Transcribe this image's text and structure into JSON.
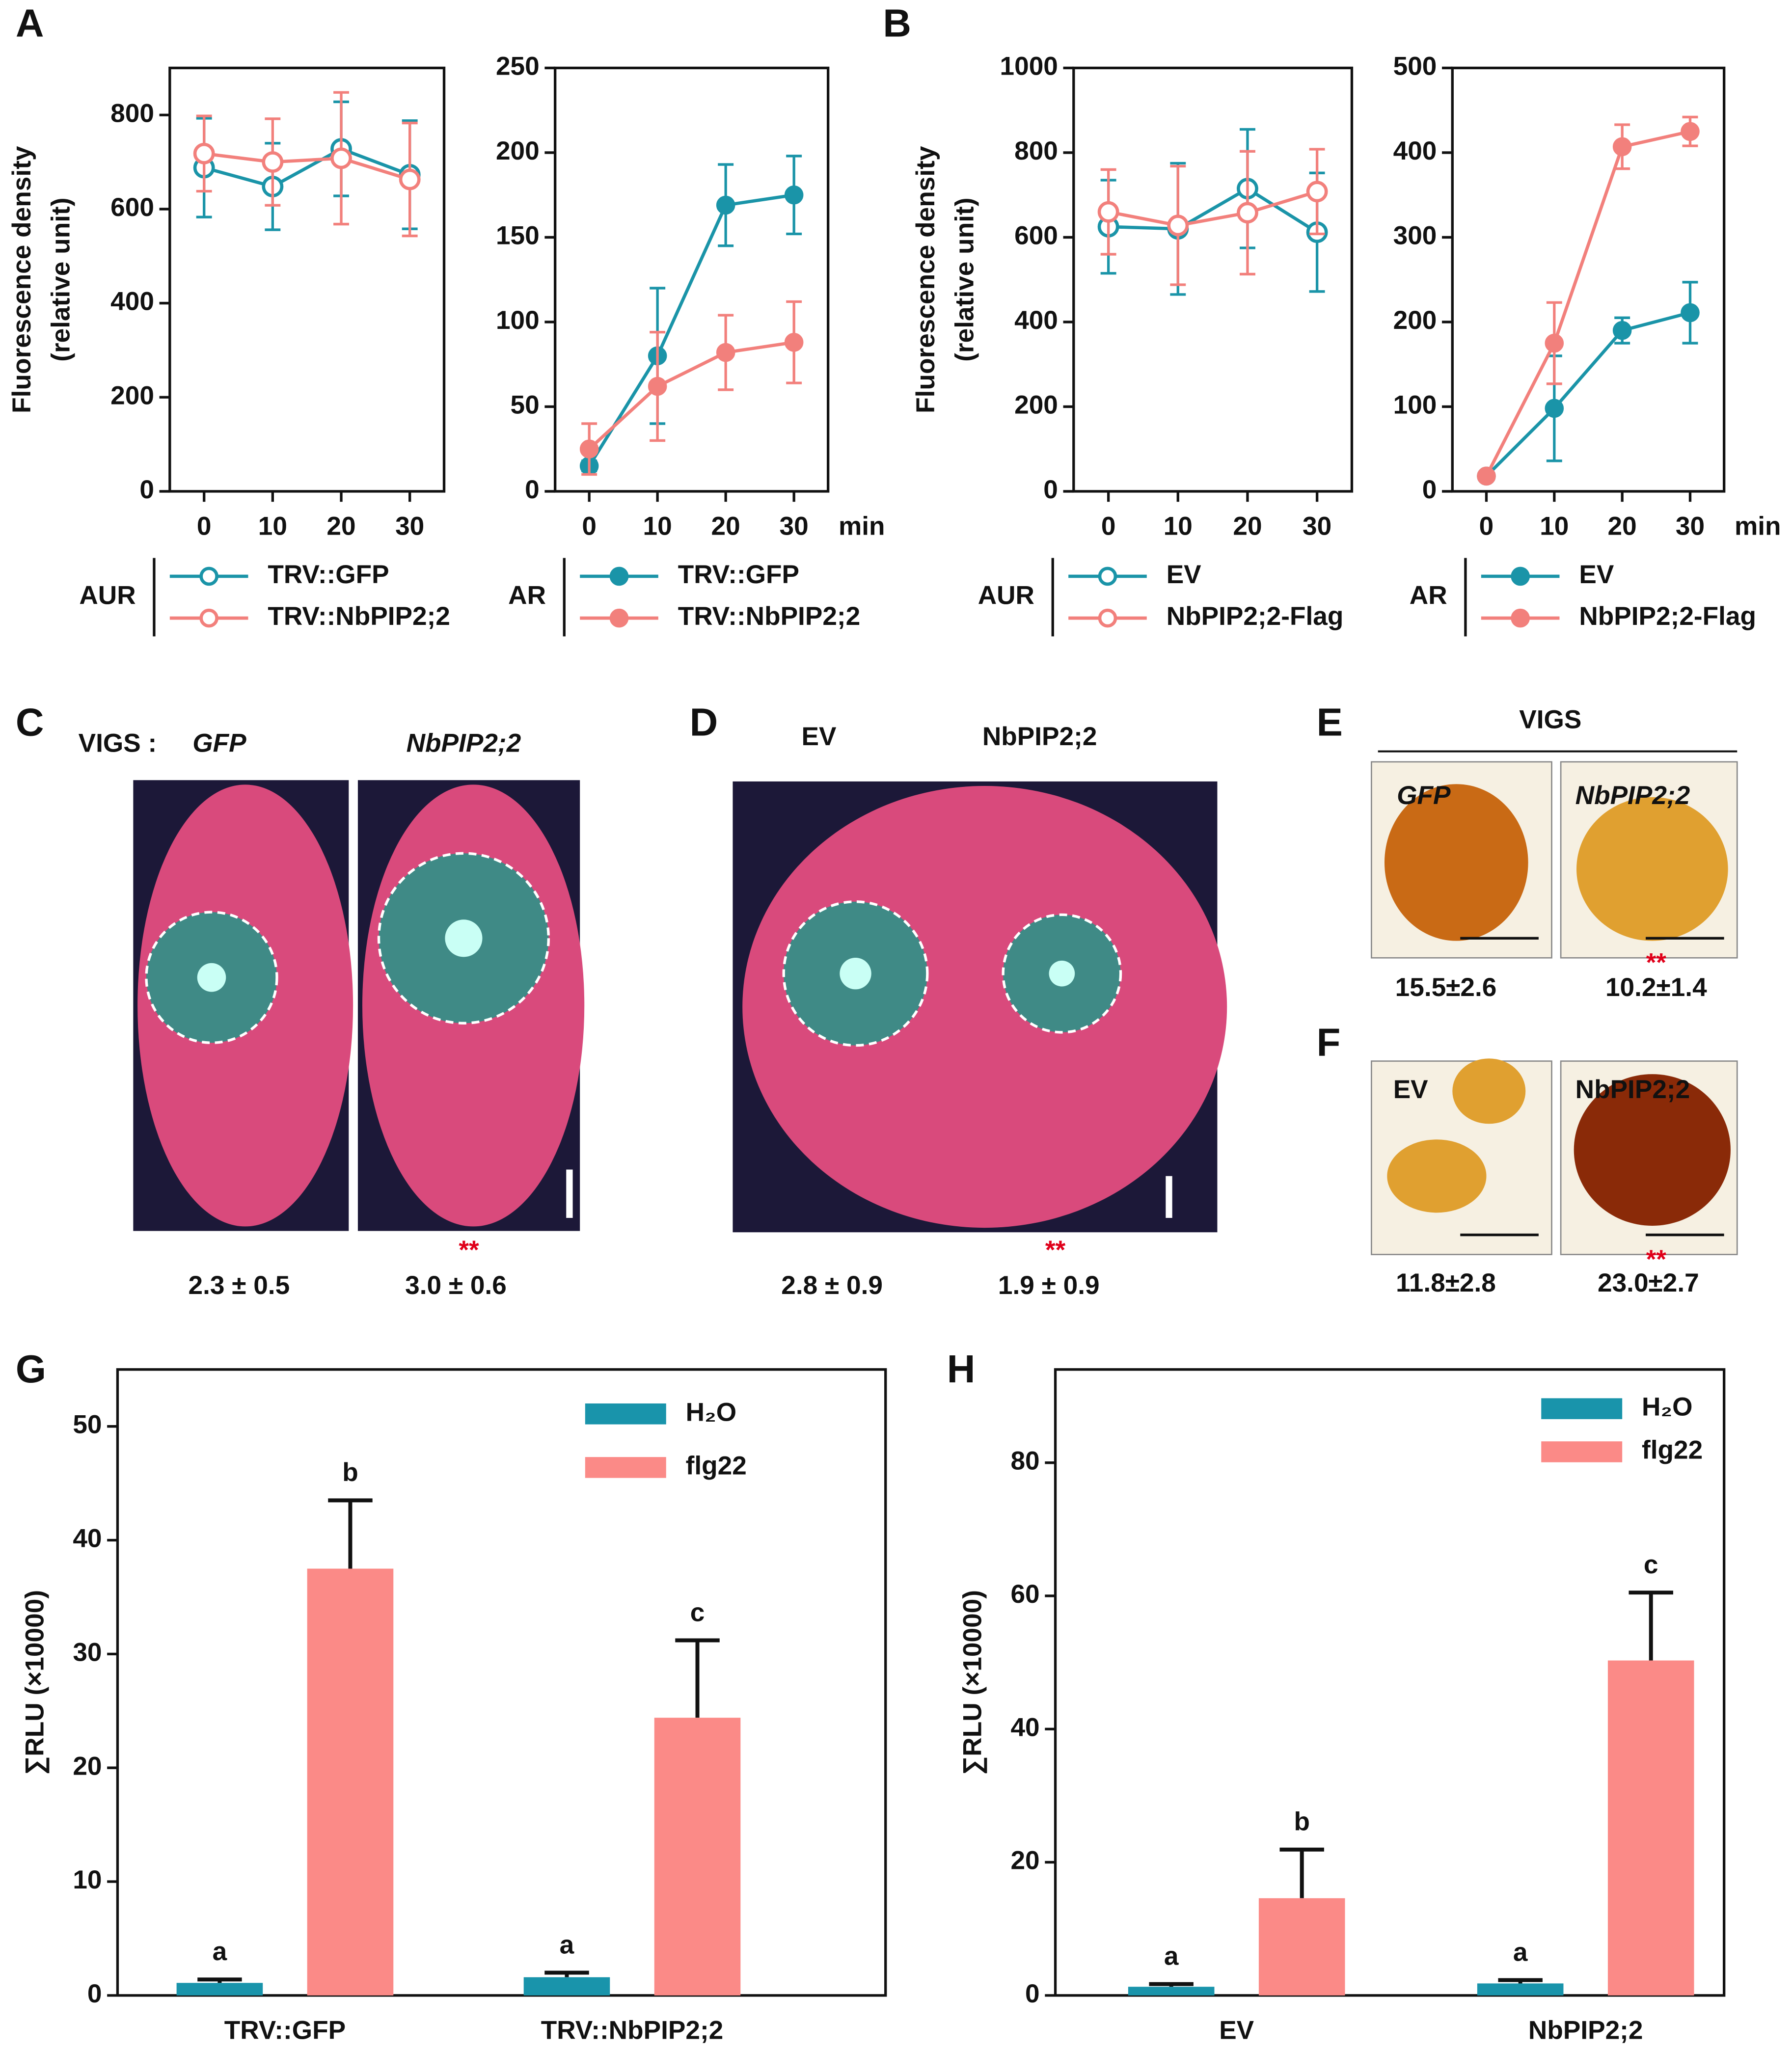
{
  "chart_data": [
    {
      "type": "line",
      "panel": "A",
      "ylabel": [
        "Fluorescence density",
        "(relative unit)"
      ],
      "x": [
        0,
        10,
        20,
        30
      ],
      "xlim": [
        -5,
        35
      ],
      "xticks": [
        0,
        10,
        20,
        30
      ],
      "ylim": [
        0,
        900
      ],
      "yticks": [
        0,
        200,
        400,
        600,
        800
      ],
      "legend_title": "AUR",
      "series": [
        {
          "name": "TRV::GFP",
          "color": "#1a94a8",
          "filled": false,
          "values": [
            688,
            648,
            728,
            673
          ],
          "errors": [
            105,
            92,
            100,
            115
          ]
        },
        {
          "name": "TRV::NbPIP2;2",
          "color": "#f2807c",
          "filled": false,
          "values": [
            718,
            700,
            708,
            663
          ],
          "errors": [
            80,
            92,
            140,
            120
          ]
        }
      ]
    },
    {
      "type": "line",
      "xlabel": "min",
      "x": [
        0,
        10,
        20,
        30
      ],
      "xlim": [
        -5,
        35
      ],
      "xticks": [
        0,
        10,
        20,
        30
      ],
      "ylim": [
        0,
        250
      ],
      "yticks": [
        0,
        50,
        100,
        150,
        200,
        250
      ],
      "legend_title": "AR",
      "series": [
        {
          "name": "TRV::GFP",
          "color": "#1a94a8",
          "filled": true,
          "values": [
            15,
            80,
            169,
            175
          ],
          "errors": [
            3,
            40,
            24,
            23
          ]
        },
        {
          "name": "TRV::NbPIP2;2",
          "color": "#f2807c",
          "filled": true,
          "values": [
            25,
            62,
            82,
            88
          ],
          "errors": [
            15,
            32,
            22,
            24
          ]
        }
      ]
    },
    {
      "type": "line",
      "panel": "B",
      "ylabel": [
        "Fluorescence density",
        "(relative unit)"
      ],
      "x": [
        0,
        10,
        20,
        30
      ],
      "xlim": [
        -5,
        35
      ],
      "xticks": [
        0,
        10,
        20,
        30
      ],
      "ylim": [
        0,
        1000
      ],
      "yticks": [
        0,
        200,
        400,
        600,
        800,
        1000
      ],
      "legend_title": "AUR",
      "series": [
        {
          "name": "EV",
          "color": "#1a94a8",
          "filled": false,
          "values": [
            625,
            620,
            715,
            612
          ],
          "errors": [
            110,
            155,
            140,
            140
          ]
        },
        {
          "name": "NbPIP2;2-Flag",
          "color": "#f2807c",
          "filled": false,
          "values": [
            660,
            628,
            658,
            708
          ],
          "errors": [
            100,
            140,
            145,
            100
          ]
        }
      ]
    },
    {
      "type": "line",
      "xlabel": "min",
      "x": [
        0,
        10,
        20,
        30
      ],
      "xlim": [
        -5,
        35
      ],
      "xticks": [
        0,
        10,
        20,
        30
      ],
      "ylim": [
        0,
        500
      ],
      "yticks": [
        0,
        100,
        200,
        300,
        400,
        500
      ],
      "legend_title": "AR",
      "series": [
        {
          "name": "EV",
          "color": "#1a94a8",
          "filled": true,
          "values": [
            18,
            98,
            190,
            211
          ],
          "errors": [
            3,
            62,
            15,
            36
          ]
        },
        {
          "name": "NbPIP2;2-Flag",
          "color": "#f2807c",
          "filled": true,
          "values": [
            18,
            175,
            407,
            425
          ],
          "errors": [
            3,
            48,
            26,
            17
          ]
        }
      ]
    },
    {
      "type": "bar",
      "panel": "G",
      "ylabel": "∑RLU (×10000)",
      "categories": [
        "TRV::GFP",
        "TRV::NbPIP2;2"
      ],
      "ylim": [
        0,
        55
      ],
      "yticks": [
        0,
        10,
        20,
        30,
        40,
        50
      ],
      "series": [
        {
          "name": "H₂O",
          "color": "#1994ab",
          "values": [
            1.1,
            1.6
          ],
          "errors": [
            0.3,
            0.4
          ],
          "letters": [
            "a",
            "a"
          ]
        },
        {
          "name": "flg22",
          "color": "#fb8a87",
          "values": [
            37.5,
            24.4
          ],
          "errors": [
            6.0,
            6.8
          ],
          "letters": [
            "b",
            "c"
          ]
        }
      ]
    },
    {
      "type": "bar",
      "panel": "H",
      "ylabel": "∑RLU (×10000)",
      "categories": [
        "EV",
        "NbPIP2;2"
      ],
      "ylim": [
        0,
        94
      ],
      "yticks": [
        0,
        20,
        40,
        60,
        80
      ],
      "series": [
        {
          "name": "H₂O",
          "color": "#1994ab",
          "values": [
            1.3,
            1.8
          ],
          "errors": [
            0.4,
            0.5
          ],
          "letters": [
            "a",
            "a"
          ]
        },
        {
          "name": "flg22",
          "color": "#fb8a87",
          "values": [
            14.6,
            50.3
          ],
          "errors": [
            7.3,
            10.2
          ],
          "letters": [
            "b",
            "c"
          ]
        }
      ]
    }
  ],
  "photo_panels": [
    {
      "panel": "C",
      "header": "VIGS :",
      "samples": [
        {
          "label": "GFP",
          "value": "2.3 ± 0.5"
        },
        {
          "label": "NbPIP2;2",
          "value": "3.0 ± 0.6",
          "significance": "**"
        }
      ]
    },
    {
      "panel": "D",
      "samples": [
        {
          "label": "EV",
          "value": "2.8 ± 0.9"
        },
        {
          "label": "NbPIP2;2",
          "value": "1.9 ± 0.9",
          "significance": "**"
        }
      ]
    },
    {
      "panel": "E",
      "header": "VIGS",
      "samples": [
        {
          "label": "GFP",
          "value": "15.5±2.6"
        },
        {
          "label": "NbPIP2;2",
          "value": "10.2±1.4",
          "significance": "**"
        }
      ]
    },
    {
      "panel": "F",
      "samples": [
        {
          "label": "EV",
          "value": "11.8±2.8"
        },
        {
          "label": "NbPIP2;2",
          "value": "23.0±2.7",
          "significance": "**"
        }
      ]
    }
  ]
}
